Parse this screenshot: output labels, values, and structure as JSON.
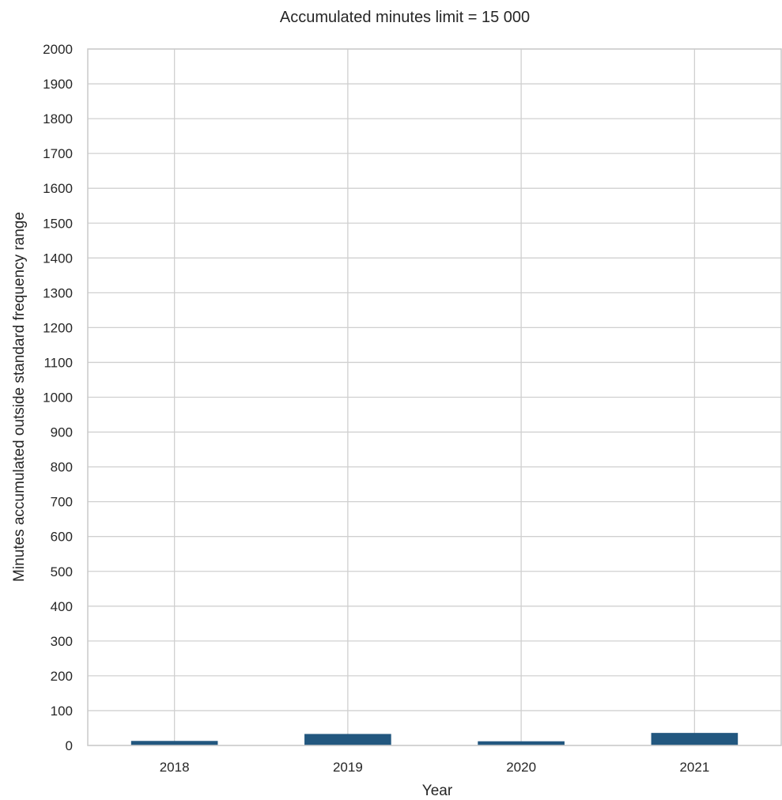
{
  "chart_data": {
    "type": "bar",
    "title": "Accumulated minutes limit = 15 000",
    "xlabel": "Year",
    "ylabel": "Minutes accumulated outside standard frequency range",
    "categories": [
      "2018",
      "2019",
      "2020",
      "2021"
    ],
    "values": [
      13,
      33,
      12,
      36
    ],
    "ylim": [
      0,
      2000
    ],
    "yticks": [
      0,
      100,
      200,
      300,
      400,
      500,
      600,
      700,
      800,
      900,
      1000,
      1100,
      1200,
      1300,
      1400,
      1500,
      1600,
      1700,
      1800,
      1900,
      2000
    ],
    "grid": true,
    "bar_color": "#22577f",
    "grid_color": "#d0d0d0"
  }
}
